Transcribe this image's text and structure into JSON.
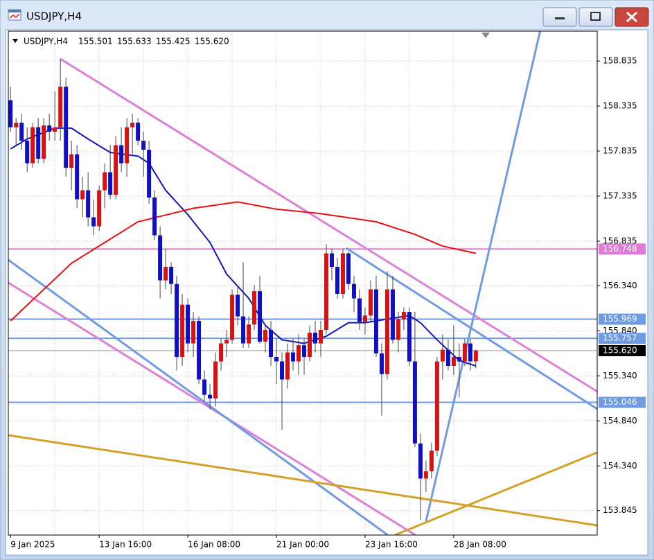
{
  "window_title": "USDJPY,H4",
  "chart_data": {
    "type": "candlestick",
    "symbol": "USDJPY,H4",
    "categories": [
      "9 Jan 2025",
      null,
      null,
      null,
      null,
      null,
      null,
      null,
      null,
      null,
      null,
      null,
      null,
      null,
      null,
      null,
      "13 Jan 16:00",
      null,
      null,
      null,
      null,
      null,
      null,
      null,
      null,
      null,
      null,
      null,
      null,
      null,
      null,
      null,
      "16 Jan 08:00",
      null,
      null,
      null,
      null,
      null,
      null,
      null,
      null,
      null,
      null,
      null,
      null,
      null,
      null,
      null,
      "21 Jan 00:00",
      null,
      null,
      null,
      null,
      null,
      null,
      null,
      null,
      null,
      null,
      null,
      null,
      null,
      null,
      null,
      "23 Jan 16:00",
      null,
      null,
      null,
      null,
      null,
      null,
      null,
      null,
      null,
      null,
      null,
      null,
      null,
      null,
      null,
      "28 Jan 08:00",
      null,
      null,
      null,
      null
    ],
    "open": [
      158.4,
      158.1,
      158.15,
      157.95,
      157.7,
      158.1,
      157.75,
      158.12,
      158.05,
      158.1,
      158.55,
      157.65,
      157.8,
      157.3,
      157.4,
      157.1,
      157.0,
      157.4,
      157.6,
      157.35,
      157.9,
      157.7,
      158.1,
      158.15,
      157.95,
      157.85,
      157.32,
      156.9,
      156.4,
      156.55,
      156.36,
      155.55,
      156.13,
      155.7,
      155.95,
      155.3,
      155.13,
      155.09,
      155.5,
      155.7,
      155.74,
      156.24,
      156.0,
      155.7,
      155.91,
      156.28,
      155.72,
      155.85,
      155.55,
      155.5,
      155.3,
      155.6,
      155.5,
      155.68,
      155.55,
      155.82,
      155.7,
      155.85,
      156.7,
      156.55,
      156.25,
      156.7,
      156.36,
      156.2,
      155.94,
      156.01,
      156.3,
      155.59,
      155.36,
      156.3,
      155.74,
      155.97,
      156.05,
      155.5,
      154.59,
      154.2,
      154.28,
      154.51,
      155.5,
      155.63,
      155.45,
      155.55,
      155.5,
      155.7,
      155.501
    ],
    "high": [
      158.55,
      158.2,
      158.25,
      158.1,
      158.15,
      158.2,
      158.2,
      158.25,
      158.5,
      158.86,
      158.65,
      157.95,
      157.9,
      157.55,
      157.6,
      157.3,
      157.45,
      157.7,
      157.9,
      158.0,
      158.1,
      158.2,
      158.25,
      158.2,
      158.05,
      157.95,
      157.4,
      157.0,
      156.75,
      156.6,
      156.45,
      156.25,
      156.2,
      156.05,
      156.0,
      155.4,
      155.25,
      155.6,
      155.75,
      155.85,
      156.3,
      156.35,
      156.6,
      156.0,
      156.35,
      156.45,
      155.9,
      155.95,
      155.75,
      155.6,
      155.7,
      155.75,
      155.8,
      155.75,
      155.9,
      155.95,
      155.95,
      156.8,
      156.75,
      156.65,
      156.75,
      156.72,
      156.45,
      156.3,
      156.1,
      156.4,
      156.45,
      155.7,
      156.5,
      156.45,
      156.05,
      156.1,
      156.1,
      156.05,
      154.7,
      154.4,
      154.6,
      155.55,
      155.8,
      155.75,
      155.9,
      155.7,
      155.75,
      155.75,
      155.633
    ],
    "low": [
      158.05,
      157.9,
      157.85,
      157.6,
      157.65,
      157.7,
      157.7,
      157.95,
      157.95,
      157.95,
      157.55,
      157.4,
      157.2,
      157.1,
      157.0,
      156.9,
      156.95,
      157.2,
      157.3,
      157.3,
      157.6,
      157.55,
      157.8,
      157.9,
      157.55,
      157.25,
      156.85,
      156.2,
      156.3,
      156.25,
      155.4,
      155.45,
      155.6,
      155.55,
      155.25,
      155.05,
      154.97,
      155.0,
      155.4,
      155.55,
      155.7,
      155.9,
      155.65,
      155.65,
      155.85,
      155.7,
      155.6,
      155.45,
      155.25,
      154.74,
      155.2,
      155.4,
      155.35,
      155.35,
      155.5,
      155.6,
      155.55,
      155.8,
      156.4,
      156.2,
      156.2,
      156.3,
      156.05,
      155.85,
      155.8,
      155.95,
      155.55,
      154.9,
      155.3,
      155.7,
      155.6,
      155.85,
      155.45,
      154.55,
      153.74,
      154.05,
      154.2,
      154.45,
      155.3,
      155.4,
      155.35,
      155.1,
      155.45,
      155.4,
      155.425
    ],
    "close": [
      158.1,
      158.15,
      157.95,
      157.7,
      158.1,
      157.75,
      158.12,
      158.05,
      158.1,
      158.55,
      157.65,
      157.8,
      157.3,
      157.4,
      157.1,
      157.0,
      157.4,
      157.6,
      157.35,
      157.9,
      157.7,
      158.1,
      158.15,
      157.95,
      157.85,
      157.32,
      156.9,
      156.4,
      156.55,
      156.36,
      155.55,
      156.13,
      155.7,
      155.95,
      155.3,
      155.13,
      155.09,
      155.5,
      155.7,
      155.74,
      156.24,
      156.0,
      155.7,
      155.91,
      156.28,
      155.72,
      155.85,
      155.55,
      155.5,
      155.3,
      155.6,
      155.5,
      155.68,
      155.55,
      155.82,
      155.7,
      155.85,
      156.7,
      156.55,
      156.25,
      156.7,
      156.36,
      156.2,
      155.94,
      156.01,
      156.3,
      155.59,
      155.36,
      156.3,
      155.74,
      155.97,
      156.05,
      155.5,
      154.59,
      154.2,
      154.28,
      154.51,
      155.5,
      155.63,
      155.45,
      155.55,
      155.5,
      155.7,
      155.5,
      155.62
    ],
    "up_color": "#d41414",
    "down_color": "#1010c0",
    "wick_color": "#444444",
    "xlim": [
      -0.4,
      105.9
    ],
    "ylim": [
      153.573,
      159.166
    ],
    "yticks": [
      158.835,
      158.335,
      157.835,
      157.335,
      156.835,
      {
        "value": 156.34,
        "label": "156.340"
      },
      {
        "value": 155.84,
        "label": "155.840"
      },
      {
        "value": 155.34,
        "label": "155.340"
      },
      {
        "value": 154.84,
        "label": "154.840"
      },
      {
        "value": 154.34,
        "label": "154.340"
      },
      153.845
    ],
    "grid": true,
    "current_price": {
      "value": 155.62,
      "label": "155.620"
    },
    "levels": [
      {
        "value": 156.748,
        "color": "#e07ad8"
      },
      {
        "value": 155.969,
        "color": "#6f9be2"
      },
      {
        "value": 155.757,
        "color": "#6f9be2"
      },
      {
        "value": 155.046,
        "color": "#6f9be2"
      }
    ],
    "indicators": [
      {
        "color": "#1414b4",
        "bar": [
          0,
          3,
          8,
          11,
          14,
          18,
          23,
          25,
          28,
          32,
          36,
          39,
          43,
          46,
          49,
          53,
          57,
          61,
          64,
          68,
          72,
          74,
          77,
          81,
          84
        ],
        "values": [
          157.86,
          157.97,
          158.09,
          158.09,
          157.97,
          157.82,
          157.78,
          157.7,
          157.4,
          157.13,
          156.82,
          156.47,
          156.2,
          155.9,
          155.74,
          155.7,
          155.78,
          155.93,
          155.93,
          155.97,
          156.01,
          155.93,
          155.74,
          155.51,
          155.45
        ]
      },
      {
        "color": "#e81010",
        "bar": [
          0,
          11,
          23,
          33,
          41,
          48,
          56,
          66,
          73,
          78,
          84
        ],
        "values": [
          155.95,
          156.59,
          157.05,
          157.2,
          157.27,
          157.19,
          157.14,
          157.05,
          156.91,
          156.78,
          156.7
        ]
      }
    ],
    "trendlines": [
      {
        "color": "#dc80d8",
        "bar": [
          9,
          105.9
        ],
        "values": [
          158.858,
          155.166
        ]
      },
      {
        "color": "#dc80d8",
        "bar": [
          -0.4,
          73.1
        ],
        "values": [
          156.374,
          153.573
        ]
      },
      {
        "color": "#6f9be2",
        "bar": [
          60.6,
          105.9
        ],
        "values": [
          156.758,
          154.973
        ]
      },
      {
        "color": "#6f9be2",
        "bar": [
          -0.4,
          68.1
        ],
        "values": [
          156.627,
          153.573
        ]
      },
      {
        "color": "#6f9be2",
        "bar": [
          75,
          95.6
        ],
        "values": [
          153.727,
          159.166
        ]
      },
      {
        "color": "#d4a02a",
        "bar": [
          -0.4,
          105.9
        ],
        "values": [
          154.681,
          153.681
        ]
      },
      {
        "color": "#d4a02a",
        "bar": [
          69.4,
          105.9
        ],
        "values": [
          153.573,
          154.489
        ]
      }
    ]
  }
}
